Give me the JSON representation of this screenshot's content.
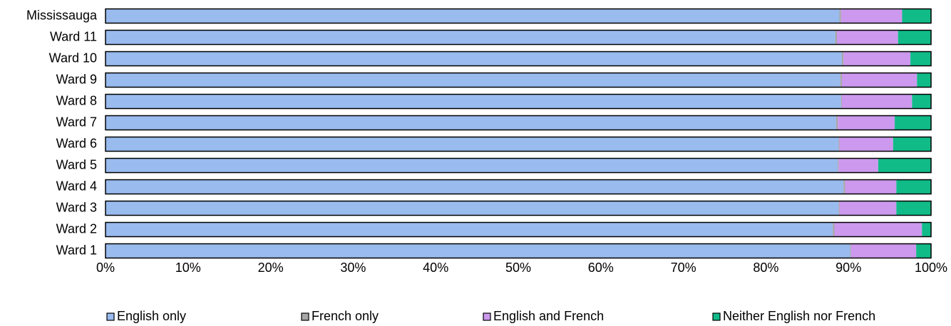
{
  "chart_data": {
    "type": "bar",
    "orientation": "horizontal",
    "stacked": true,
    "normalized_percent": true,
    "categories": [
      "Mississauga",
      "Ward 11",
      "Ward 10",
      "Ward 9",
      "Ward 8",
      "Ward 7",
      "Ward 6",
      "Ward 5",
      "Ward 4",
      "Ward 3",
      "Ward 2",
      "Ward 1"
    ],
    "series": [
      {
        "name": "English only",
        "color": "#99BBEE",
        "values": [
          88.9,
          88.4,
          89.2,
          89.0,
          89.1,
          88.5,
          88.8,
          88.7,
          89.4,
          88.8,
          88.1,
          90.2
        ]
      },
      {
        "name": "French only",
        "color": "#A6A6A6",
        "values": [
          0.2,
          0.2,
          0.2,
          0.2,
          0.1,
          0.2,
          0.1,
          0.1,
          0.2,
          0.1,
          0.2,
          0.1
        ]
      },
      {
        "name": "English and French",
        "color": "#CC99EE",
        "values": [
          7.4,
          7.4,
          8.1,
          9.1,
          8.5,
          6.9,
          6.5,
          4.8,
          6.2,
          6.9,
          10.6,
          7.9
        ]
      },
      {
        "name": "Neither English nor French",
        "color": "#11BB88",
        "values": [
          3.5,
          4.0,
          2.5,
          1.7,
          2.3,
          4.4,
          4.6,
          6.4,
          4.2,
          4.2,
          1.1,
          1.8
        ]
      }
    ],
    "xlim": [
      0,
      100
    ],
    "xticks": [
      "0%",
      "10%",
      "20%",
      "30%",
      "40%",
      "50%",
      "60%",
      "70%",
      "80%",
      "90%",
      "100%"
    ],
    "xlabel": "",
    "ylabel": "",
    "title": "",
    "grid": false,
    "legend": {
      "position": "bottom",
      "entries": [
        "English only",
        "French only",
        "English and French",
        "Neither English nor French"
      ]
    }
  }
}
